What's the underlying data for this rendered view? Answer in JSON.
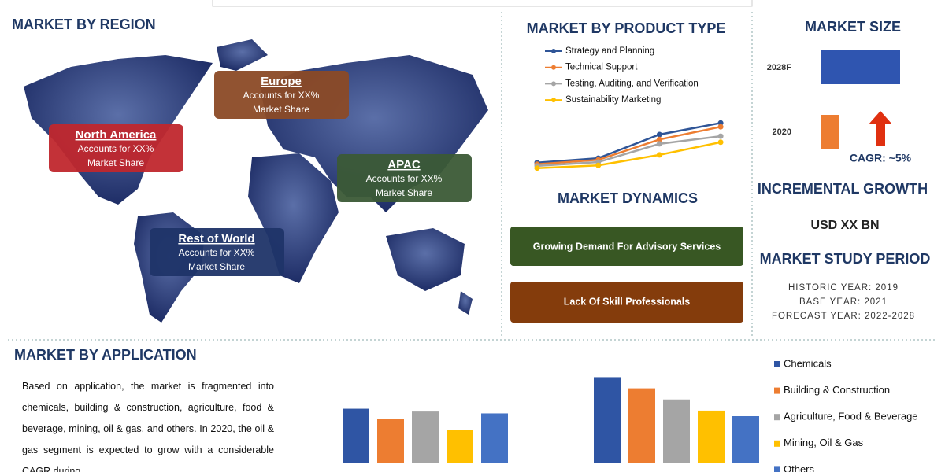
{
  "region": {
    "title": "MARKET BY REGION",
    "callouts": [
      {
        "name": "North America",
        "lines": [
          "Accounts for XX%",
          "Market Share"
        ]
      },
      {
        "name": "Europe",
        "lines": [
          "Accounts for XX%",
          "Market Share"
        ]
      },
      {
        "name": "APAC",
        "lines": [
          "Accounts for XX%",
          "Market Share"
        ]
      },
      {
        "name": "Rest of World",
        "lines": [
          "Accounts for XX%",
          "Market Share"
        ]
      }
    ]
  },
  "dynamics": {
    "title": "MARKET DYNAMICS",
    "drivers": [
      "Growing Demand For Advisory Services",
      "Lack Of Skill Professionals"
    ]
  },
  "size_notes": {
    "cagr": "CAGR: ~5%",
    "growth_title": "INCREMENTAL GROWTH",
    "growth_value": "USD XX BN",
    "period_title": "MARKET STUDY PERIOD",
    "period_lines": [
      "HISTORIC YEAR: 2019",
      "BASE YEAR: 2021",
      "FORECAST YEAR: 2022-2028"
    ]
  },
  "application_text": "Based on application, the market is fragmented into chemicals, building & construction, agriculture, food & beverage, mining, oil & gas, and others. In 2020, the oil & gas segment is expected to grow with a considerable CAGR during",
  "chart_data": [
    {
      "type": "line",
      "title": "MARKET BY PRODUCT TYPE",
      "categories": [
        null,
        null,
        null,
        null
      ],
      "ylim": [
        0,
        100
      ],
      "series": [
        {
          "name": "Strategy and Planning",
          "color": "#2f5597",
          "values": [
            19,
            27,
            70,
            91
          ]
        },
        {
          "name": "Technical Support",
          "color": "#ed7d31",
          "values": [
            16,
            24,
            61,
            84
          ]
        },
        {
          "name": "Testing, Auditing, and Verification",
          "color": "#a5a5a5",
          "values": [
            13,
            20,
            53,
            67
          ]
        },
        {
          "name": "Sustainability Marketing",
          "color": "#ffc000",
          "values": [
            9,
            14,
            33,
            56
          ]
        }
      ]
    },
    {
      "type": "hbar",
      "title": "MARKET SIZE",
      "categories": [
        "2028F",
        "2020"
      ],
      "values": [
        100,
        23
      ],
      "colors": [
        "#2f55b0",
        "#ed7d31"
      ],
      "xlim": [
        0,
        100
      ]
    },
    {
      "type": "groupbar",
      "title": "MARKET BY APPLICATION",
      "categories": [
        null,
        null
      ],
      "ylim": [
        0,
        100
      ],
      "series": [
        {
          "name": "Chemicals",
          "color": "#2f55a4",
          "values": [
            58,
            92
          ]
        },
        {
          "name": "Building & Construction",
          "color": "#ed7d31",
          "values": [
            47,
            80
          ]
        },
        {
          "name": "Agriculture, Food & Beverage",
          "color": "#a5a5a5",
          "values": [
            55,
            68
          ]
        },
        {
          "name": "Mining, Oil & Gas",
          "color": "#ffc000",
          "values": [
            35,
            56
          ]
        },
        {
          "name": "Others",
          "color": "#4472c4",
          "values": [
            53,
            50
          ]
        }
      ]
    }
  ]
}
